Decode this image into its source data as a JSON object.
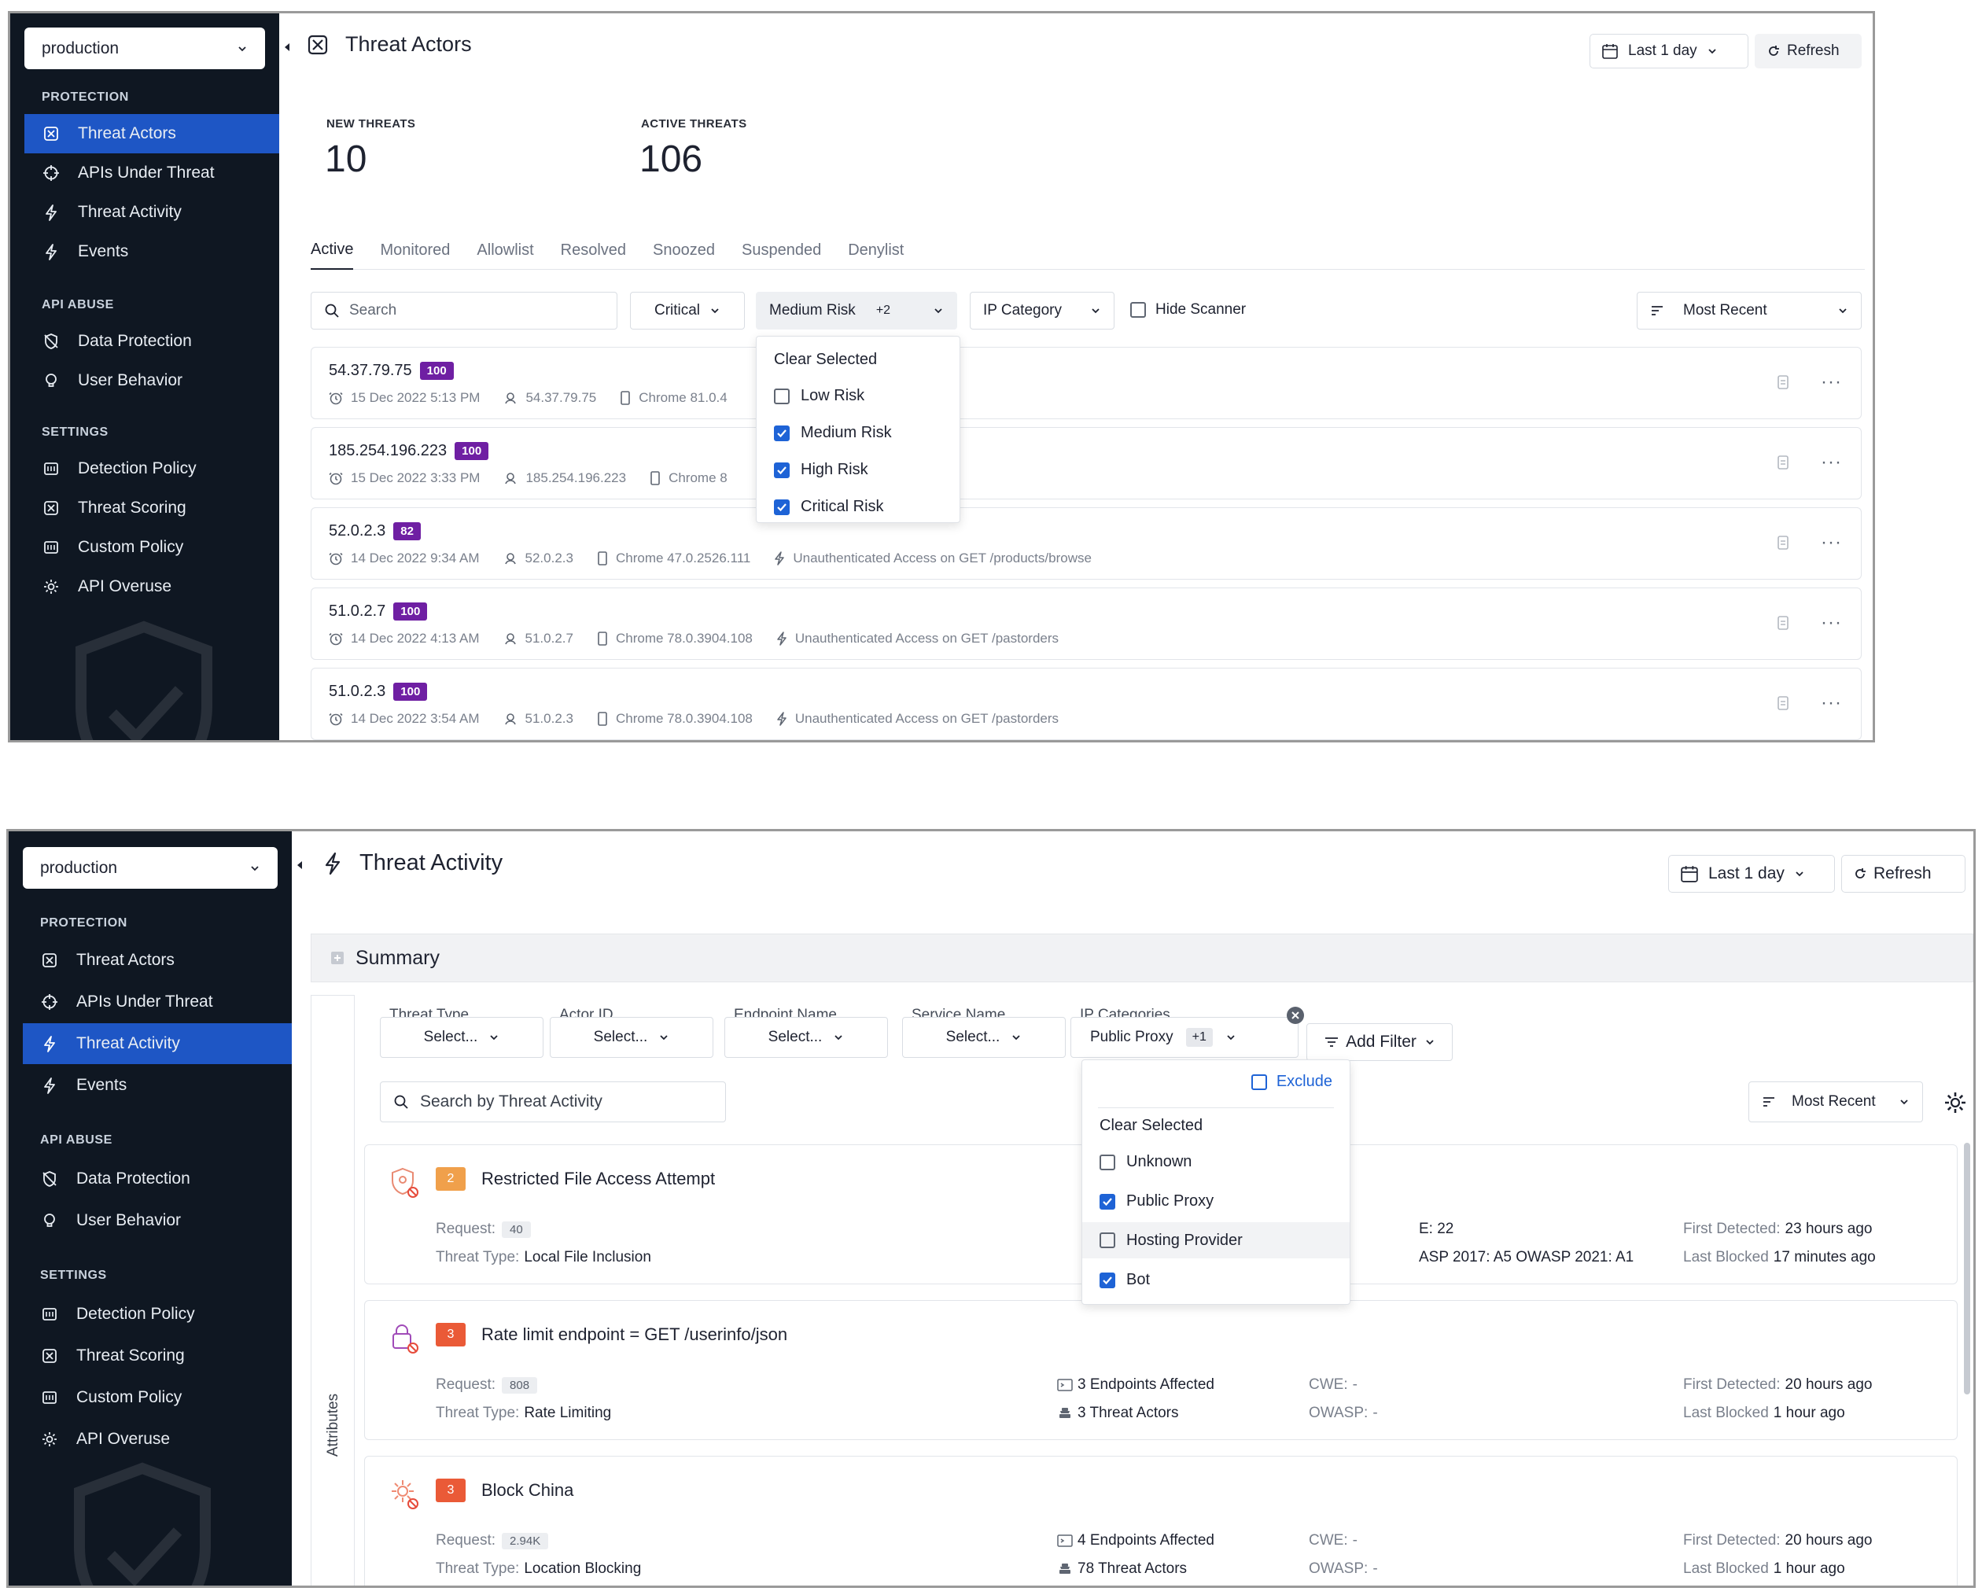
{
  "sidebar": {
    "env": "production",
    "sections": [
      {
        "title": "PROTECTION",
        "items": [
          "Threat Actors",
          "APIs Under Threat",
          "Threat Activity",
          "Events"
        ]
      },
      {
        "title": "API ABUSE",
        "items": [
          "Data Protection",
          "User Behavior"
        ]
      },
      {
        "title": "SETTINGS",
        "items": [
          "Detection Policy",
          "Threat Scoring",
          "Custom Policy",
          "API Overuse"
        ]
      }
    ]
  },
  "actors": {
    "title": "Threat Actors",
    "date_range": "Last 1 day",
    "refresh": "Refresh",
    "stats": [
      {
        "label": "NEW THREATS",
        "value": "10"
      },
      {
        "label": "ACTIVE THREATS",
        "value": "106"
      }
    ],
    "tabs": [
      "Active",
      "Monitored",
      "Allowlist",
      "Resolved",
      "Snoozed",
      "Suspended",
      "Denylist"
    ],
    "search_placeholder": "Search",
    "filter_critical": "Critical",
    "filter_risk": "Medium Risk",
    "filter_risk_extra": "+2",
    "filter_ip": "IP Category",
    "hide_scanner": "Hide Scanner",
    "sort": "Most Recent",
    "risk_dropdown": {
      "clear": "Clear Selected",
      "options": [
        {
          "label": "Low Risk",
          "checked": false
        },
        {
          "label": "Medium Risk",
          "checked": true
        },
        {
          "label": "High Risk",
          "checked": true
        },
        {
          "label": "Critical Risk",
          "checked": true
        }
      ]
    },
    "rows": [
      {
        "ip": "54.37.79.75",
        "score": "100",
        "time": "15 Dec 2022 5:13 PM",
        "loc": "54.37.79.75",
        "browser": "Chrome 81.0.4",
        "activity": ""
      },
      {
        "ip": "185.254.196.223",
        "score": "100",
        "time": "15 Dec 2022 3:33 PM",
        "loc": "185.254.196.223",
        "browser": "Chrome 8",
        "activity": ""
      },
      {
        "ip": "52.0.2.3",
        "score": "82",
        "time": "14 Dec 2022 9:34 AM",
        "loc": "52.0.2.3",
        "browser": "Chrome 47.0.2526.111",
        "activity": "Unauthenticated Access on GET /products/browse"
      },
      {
        "ip": "51.0.2.7",
        "score": "100",
        "time": "14 Dec 2022 4:13 AM",
        "loc": "51.0.2.7",
        "browser": "Chrome 78.0.3904.108",
        "activity": "Unauthenticated Access on GET /pastorders"
      },
      {
        "ip": "51.0.2.3",
        "score": "100",
        "time": "14 Dec 2022 3:54 AM",
        "loc": "51.0.2.3",
        "browser": "Chrome 78.0.3904.108",
        "activity": "Unauthenticated Access on GET /pastorders"
      }
    ]
  },
  "activity": {
    "title": "Threat Activity",
    "date_range": "Last 1 day",
    "refresh": "Refresh",
    "summary": "Summary",
    "attributes": "Attributes",
    "filters": [
      {
        "label": "Threat Type",
        "value": "Select..."
      },
      {
        "label": "Actor ID",
        "value": "Select..."
      },
      {
        "label": "Endpoint Name",
        "value": "Select..."
      },
      {
        "label": "Service Name",
        "value": "Select..."
      }
    ],
    "ip_filter": {
      "label": "IP Categories",
      "value": "Public Proxy",
      "extra": "+1"
    },
    "add_filter": "Add Filter",
    "search_placeholder": "Search by Threat Activity",
    "sort": "Most Recent",
    "ip_dropdown": {
      "exclude": "Exclude",
      "clear": "Clear Selected",
      "options": [
        {
          "label": "Unknown",
          "checked": false
        },
        {
          "label": "Public Proxy",
          "checked": true
        },
        {
          "label": "Hosting Provider",
          "checked": false
        },
        {
          "label": "Bot",
          "checked": true
        }
      ]
    },
    "labels": {
      "request": "Request:",
      "threat_type": "Threat Type:",
      "cwe": "CWE:",
      "owasp": "OWASP:",
      "first": "First Detected:",
      "last": "Last Blocked"
    },
    "cards": [
      {
        "sev": "2",
        "sev_color": "#f0a04b",
        "title": "Restricted File Access Attempt",
        "request": "40",
        "threat_type": "Local File Inclusion",
        "endpoints": "",
        "actors": "",
        "cwe_partial": "E: 22",
        "owasp_partial": "ASP 2017: A5  OWASP 2021: A1",
        "first": "23 hours ago",
        "last": "17 minutes ago"
      },
      {
        "sev": "3",
        "sev_color": "#ea5a37",
        "title": "Rate limit endpoint = GET /userinfo/json",
        "request": "808",
        "threat_type": "Rate Limiting",
        "endpoints": "3 Endpoints Affected",
        "actors": "3 Threat Actors",
        "cwe": "-",
        "owasp": "-",
        "first": "20 hours ago",
        "last": "1 hour ago"
      },
      {
        "sev": "3",
        "sev_color": "#ea5a37",
        "title": "Block China",
        "request": "2.94K",
        "threat_type": "Location Blocking",
        "endpoints": "4 Endpoints Affected",
        "actors": "78 Threat Actors",
        "cwe": "-",
        "owasp": "-",
        "first": "20 hours ago",
        "last": "1 hour ago"
      }
    ]
  }
}
